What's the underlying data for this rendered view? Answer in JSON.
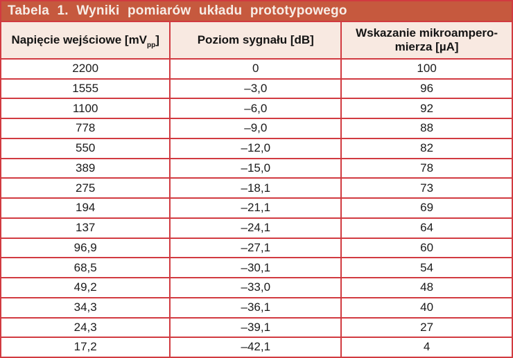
{
  "colors": {
    "border": "#d13a40",
    "title_bg": "#c6593e",
    "title_text": "#f7ede6",
    "header_bg": "#f8e9e1",
    "cell_bg": "#ffffff",
    "text": "#1a1a1a"
  },
  "title": "Tabela 1. Wyniki pomiarów układu prototypowego",
  "columns": [
    {
      "id": "voltage",
      "label_main": "Napięcie wejściowe [mV",
      "label_sub": "pp",
      "label_end": "]"
    },
    {
      "id": "level",
      "label": "Poziom sygnału [dB]"
    },
    {
      "id": "current",
      "label_line1": "Wskazanie mikroampero-",
      "label_line2": "mierza [µA]"
    }
  ],
  "rows": [
    [
      "2200",
      "0",
      "100"
    ],
    [
      "1555",
      "–3,0",
      "96"
    ],
    [
      "1100",
      "–6,0",
      "92"
    ],
    [
      "778",
      "–9,0",
      "88"
    ],
    [
      "550",
      "–12,0",
      "82"
    ],
    [
      "389",
      "–15,0",
      "78"
    ],
    [
      "275",
      "–18,1",
      "73"
    ],
    [
      "194",
      "–21,1",
      "69"
    ],
    [
      "137",
      "–24,1",
      "64"
    ],
    [
      "96,9",
      "–27,1",
      "60"
    ],
    [
      "68,5",
      "–30,1",
      "54"
    ],
    [
      "49,2",
      "–33,0",
      "48"
    ],
    [
      "34,3",
      "–36,1",
      "40"
    ],
    [
      "24,3",
      "–39,1",
      "27"
    ],
    [
      "17,2",
      "–42,1",
      "4"
    ]
  ]
}
